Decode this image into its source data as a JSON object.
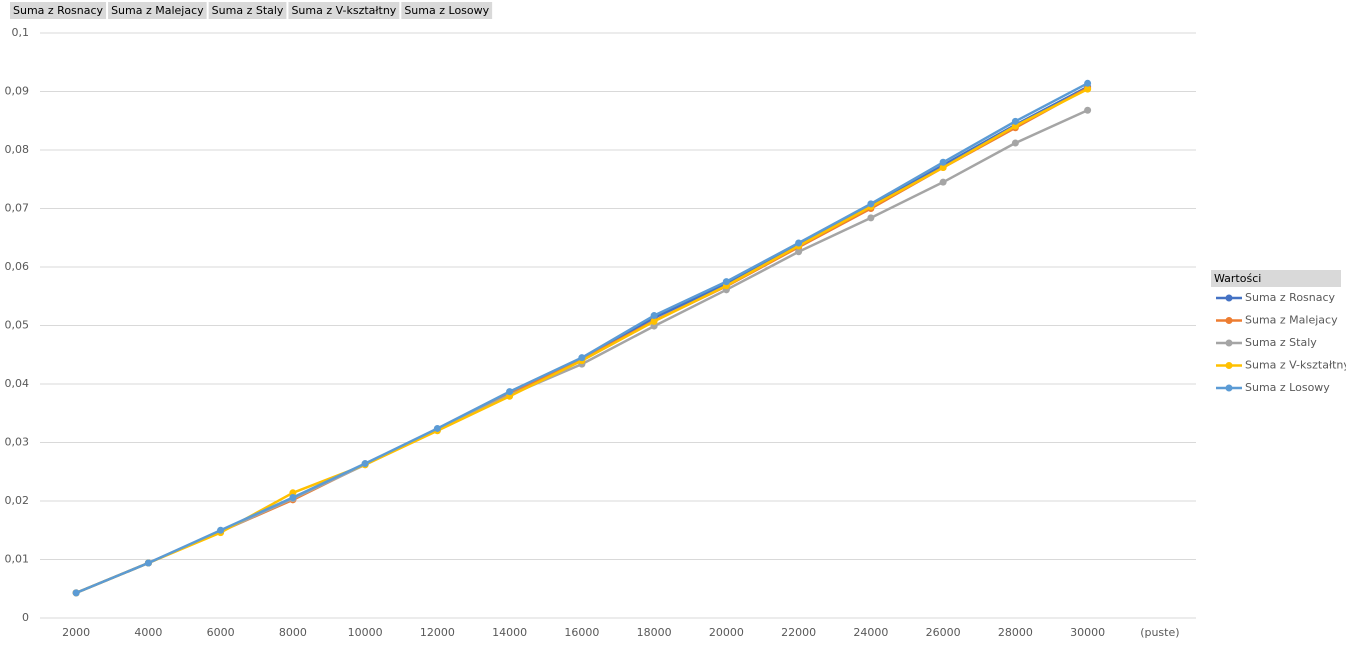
{
  "chart_data": {
    "type": "line",
    "field_buttons": [
      "Suma z Rosnacy",
      "Suma z Malejacy",
      "Suma z Staly",
      "Suma z V-kształtny",
      "Suma z Losowy"
    ],
    "legend_title": "Wartości",
    "legend": "right",
    "grid": true,
    "categories": [
      2000,
      4000,
      6000,
      8000,
      10000,
      12000,
      14000,
      16000,
      18000,
      20000,
      22000,
      24000,
      26000,
      28000,
      30000,
      "(puste)"
    ],
    "ylim": [
      0,
      0.1
    ],
    "yticks": [
      0,
      {
        "value": 0.01,
        "label": "0,01"
      },
      {
        "value": 0.02,
        "label": "0,02"
      },
      {
        "value": 0.03,
        "label": "0,03"
      },
      {
        "value": 0.04,
        "label": "0,04"
      },
      {
        "value": 0.05,
        "label": "0,05"
      },
      {
        "value": 0.06,
        "label": "0,06"
      },
      {
        "value": 0.07,
        "label": "0,07"
      },
      {
        "value": 0.08,
        "label": "0,08"
      },
      {
        "value": 0.09,
        "label": "0,09"
      },
      {
        "value": 0.1,
        "label": "0,1"
      }
    ],
    "series": [
      {
        "name": "Suma z Rosnacy",
        "color": "#4472c4",
        "values": [
          0.0043,
          0.0094,
          0.0149,
          0.0203,
          0.0263,
          0.0323,
          0.0385,
          0.0444,
          0.0513,
          0.0571,
          0.0639,
          0.0704,
          0.0774,
          0.0843,
          0.0908,
          null
        ]
      },
      {
        "name": "Suma z Malejacy",
        "color": "#ed7d31",
        "values": [
          0.0043,
          0.0094,
          0.0148,
          0.0202,
          0.0263,
          0.0322,
          0.0383,
          0.0442,
          0.0508,
          0.0567,
          0.0634,
          0.07,
          0.077,
          0.0838,
          0.0906,
          null
        ]
      },
      {
        "name": "Suma z Staly",
        "color": "#a5a5a5",
        "values": [
          0.0043,
          0.0094,
          0.0148,
          0.0204,
          0.0262,
          0.0321,
          0.0381,
          0.0434,
          0.0499,
          0.0561,
          0.0626,
          0.0684,
          0.0745,
          0.0812,
          0.0868,
          null
        ]
      },
      {
        "name": "Suma z V-kształtny",
        "color": "#ffc000",
        "values": [
          0.0043,
          0.0094,
          0.0146,
          0.0214,
          0.0262,
          0.032,
          0.0379,
          0.044,
          0.0507,
          0.0568,
          0.0636,
          0.0703,
          0.077,
          0.0841,
          0.0904,
          null
        ]
      },
      {
        "name": "Suma z Losowy",
        "color": "#5b9bd5",
        "values": [
          0.0043,
          0.0094,
          0.015,
          0.0206,
          0.0264,
          0.0324,
          0.0387,
          0.0445,
          0.0517,
          0.0575,
          0.0641,
          0.0708,
          0.0779,
          0.0849,
          0.0914,
          null
        ]
      }
    ]
  }
}
